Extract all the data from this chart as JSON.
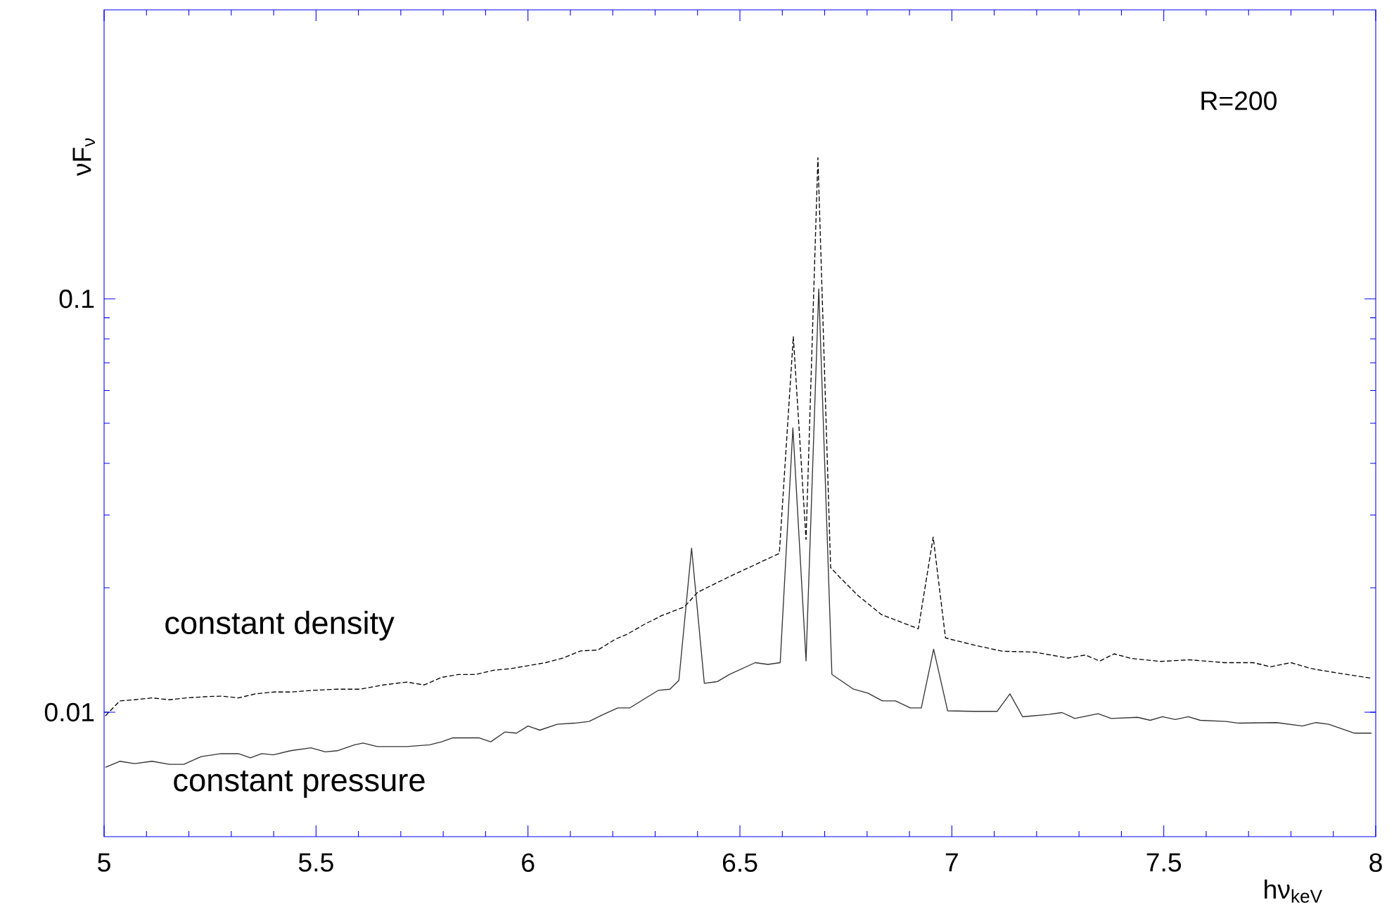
{
  "chart_data": {
    "type": "line",
    "xlabel": "hν$_{keV}$",
    "ylabel": "νF$_{ν}$",
    "annotations": [
      "R=200"
    ],
    "log": "y",
    "xlim": [
      5,
      8
    ],
    "ylim": [
      0.005,
      0.5
    ],
    "xticks": [
      5,
      5.5,
      6,
      6.5,
      7,
      7.5,
      8
    ],
    "yticks": [
      0.01,
      0.1
    ],
    "grid": false,
    "legend": false,
    "marker": "none",
    "series": [
      {
        "name": "constant density",
        "color": "#000000",
        "line_style": "dashed",
        "x": [
          5.003,
          5.017,
          5.037,
          5.072,
          5.113,
          5.154,
          5.195,
          5.236,
          5.276,
          5.317,
          5.358,
          5.399,
          5.44,
          5.495,
          5.55,
          5.604,
          5.659,
          5.714,
          5.755,
          5.796,
          5.836,
          5.877,
          5.918,
          5.96,
          6.0,
          6.042,
          6.083,
          6.124,
          6.165,
          6.206,
          6.233,
          6.274,
          6.315,
          6.369,
          6.4,
          6.473,
          6.593,
          6.626,
          6.656,
          6.684,
          6.714,
          6.735,
          6.779,
          6.834,
          6.921,
          6.956,
          6.985,
          7.052,
          7.118,
          7.194,
          7.274,
          7.315,
          7.349,
          7.383,
          7.424,
          7.492,
          7.561,
          7.643,
          7.711,
          7.752,
          7.8,
          7.848,
          7.902,
          7.991
        ],
        "values": [
          0.0098,
          0.01014,
          0.01065,
          0.01072,
          0.01083,
          0.01072,
          0.01083,
          0.0109,
          0.01094,
          0.01083,
          0.01108,
          0.01119,
          0.01119,
          0.0113,
          0.01137,
          0.01137,
          0.01164,
          0.01183,
          0.01164,
          0.01214,
          0.01234,
          0.01234,
          0.01263,
          0.01275,
          0.01296,
          0.01318,
          0.01353,
          0.01407,
          0.01414,
          0.01502,
          0.01542,
          0.0163,
          0.01712,
          0.01798,
          0.0195,
          0.02123,
          0.02422,
          0.081,
          0.02618,
          0.2195,
          0.02239,
          0.02123,
          0.01914,
          0.01722,
          0.01592,
          0.02652,
          0.01512,
          0.01454,
          0.01405,
          0.01398,
          0.01352,
          0.01375,
          0.0133,
          0.01384,
          0.01349,
          0.01327,
          0.01339,
          0.01318,
          0.01318,
          0.01288,
          0.01318,
          0.01275,
          0.01248,
          0.01208
        ]
      },
      {
        "name": "constant pressure",
        "color": "#333333",
        "line_style": "solid",
        "x": [
          5.003,
          5.037,
          5.072,
          5.113,
          5.154,
          5.188,
          5.229,
          5.276,
          5.317,
          5.345,
          5.372,
          5.399,
          5.44,
          5.488,
          5.522,
          5.55,
          5.591,
          5.611,
          5.645,
          5.714,
          5.768,
          5.796,
          5.823,
          5.884,
          5.912,
          5.946,
          5.973,
          6.0,
          6.028,
          6.069,
          6.11,
          6.144,
          6.178,
          6.212,
          6.24,
          6.274,
          6.308,
          6.335,
          6.356,
          6.386,
          6.416,
          6.447,
          6.475,
          6.536,
          6.566,
          6.595,
          6.625,
          6.656,
          6.686,
          6.717,
          6.768,
          6.802,
          6.836,
          6.867,
          6.902,
          6.928,
          6.957,
          6.99,
          7.049,
          7.107,
          7.137,
          7.167,
          7.229,
          7.26,
          7.29,
          7.345,
          7.376,
          7.438,
          7.468,
          7.497,
          7.527,
          7.558,
          7.586,
          7.647,
          7.677,
          7.766,
          7.827,
          7.859,
          7.889,
          7.95,
          7.99
        ],
        "values": [
          0.00736,
          0.00761,
          0.00751,
          0.00761,
          0.00748,
          0.00748,
          0.00781,
          0.00794,
          0.00794,
          0.00776,
          0.00794,
          0.00789,
          0.00807,
          0.0082,
          0.00802,
          0.00807,
          0.00834,
          0.00842,
          0.00826,
          0.00826,
          0.00834,
          0.00848,
          0.00867,
          0.00867,
          0.00848,
          0.00896,
          0.0089,
          0.00926,
          0.00905,
          0.00935,
          0.00941,
          0.0095,
          0.00988,
          0.01024,
          0.01024,
          0.01076,
          0.0113,
          0.01137,
          0.01194,
          0.02493,
          0.01175,
          0.01186,
          0.01234,
          0.01318,
          0.01305,
          0.01318,
          0.04873,
          0.01331,
          0.1057,
          0.01234,
          0.01137,
          0.01112,
          0.01065,
          0.01065,
          0.01024,
          0.01024,
          0.01421,
          0.01008,
          0.01005,
          0.01005,
          0.01108,
          0.00975,
          0.00988,
          0.00998,
          0.00966,
          0.00992,
          0.00966,
          0.00972,
          0.00956,
          0.00975,
          0.0096,
          0.00975,
          0.00956,
          0.0095,
          0.00941,
          0.00944,
          0.00926,
          0.00944,
          0.00935,
          0.0089,
          0.0089
        ]
      }
    ]
  }
}
